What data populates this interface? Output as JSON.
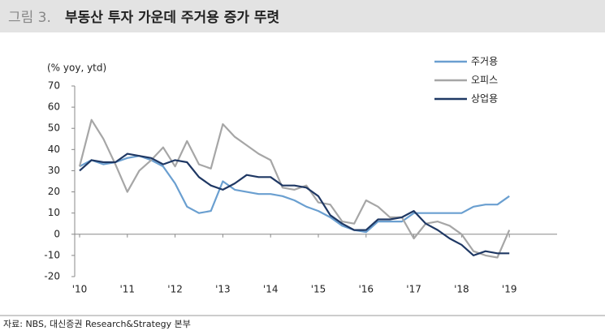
{
  "figure_label": "그림 3.",
  "source": "자료: NBS, 대신증권 Research&Strategy 본부",
  "chart_data": {
    "type": "line",
    "title": "부동산 투자 가운데 주거용 증가 뚜렷",
    "y_label": "(% yoy, ytd)",
    "x": [
      2010,
      2010.25,
      2010.5,
      2010.75,
      2011,
      2011.25,
      2011.5,
      2011.75,
      2012,
      2012.25,
      2012.5,
      2012.75,
      2013,
      2013.25,
      2013.5,
      2013.75,
      2014,
      2014.25,
      2014.5,
      2014.75,
      2015,
      2015.25,
      2015.5,
      2015.75,
      2016,
      2016.25,
      2016.5,
      2016.75,
      2017,
      2017.25,
      2017.5,
      2017.75,
      2018,
      2018.25,
      2018.5,
      2018.75,
      2019
    ],
    "series": [
      {
        "name": "주거용",
        "color": "#6a9fd0",
        "values": [
          32,
          35,
          33,
          34,
          36,
          37,
          35,
          32,
          24,
          13,
          10,
          11,
          25,
          21,
          20,
          19,
          19,
          18,
          16,
          13,
          11,
          8,
          4,
          2,
          1,
          6,
          6,
          6,
          10,
          10,
          10,
          10,
          10,
          13,
          14,
          14,
          18
        ]
      },
      {
        "name": "오피스",
        "color": "#a6a6a6",
        "values": [
          32,
          54,
          45,
          33,
          20,
          30,
          35,
          41,
          32,
          44,
          33,
          31,
          52,
          46,
          42,
          38,
          35,
          22,
          21,
          23,
          15,
          14,
          6,
          5,
          16,
          13,
          8,
          8,
          -2,
          5,
          6,
          4,
          0,
          -8,
          -10,
          -11,
          2
        ]
      },
      {
        "name": "상업용",
        "color": "#1f3864",
        "values": [
          30,
          35,
          34,
          34,
          38,
          37,
          36,
          33,
          35,
          34,
          27,
          23,
          21,
          24,
          28,
          27,
          27,
          23,
          23,
          22,
          18,
          9,
          5,
          2,
          2,
          7,
          7,
          8,
          11,
          5,
          2,
          -2,
          -5,
          -10,
          -8,
          -9,
          -9
        ]
      }
    ],
    "xlim": [
      2010,
      2020
    ],
    "xticks": [
      {
        "value": 2010,
        "label": "'10"
      },
      {
        "value": 2011,
        "label": "'11"
      },
      {
        "value": 2012,
        "label": "'12"
      },
      {
        "value": 2013,
        "label": "'13"
      },
      {
        "value": 2014,
        "label": "'14"
      },
      {
        "value": 2015,
        "label": "'15"
      },
      {
        "value": 2016,
        "label": "'16"
      },
      {
        "value": 2017,
        "label": "'17"
      },
      {
        "value": 2018,
        "label": "'18"
      },
      {
        "value": 2019,
        "label": "'19"
      }
    ],
    "ylim": [
      -20,
      70
    ],
    "yticks": [
      -20,
      -10,
      0,
      10,
      20,
      30,
      40,
      50,
      60,
      70
    ],
    "grid": false,
    "legend": "top-right"
  }
}
